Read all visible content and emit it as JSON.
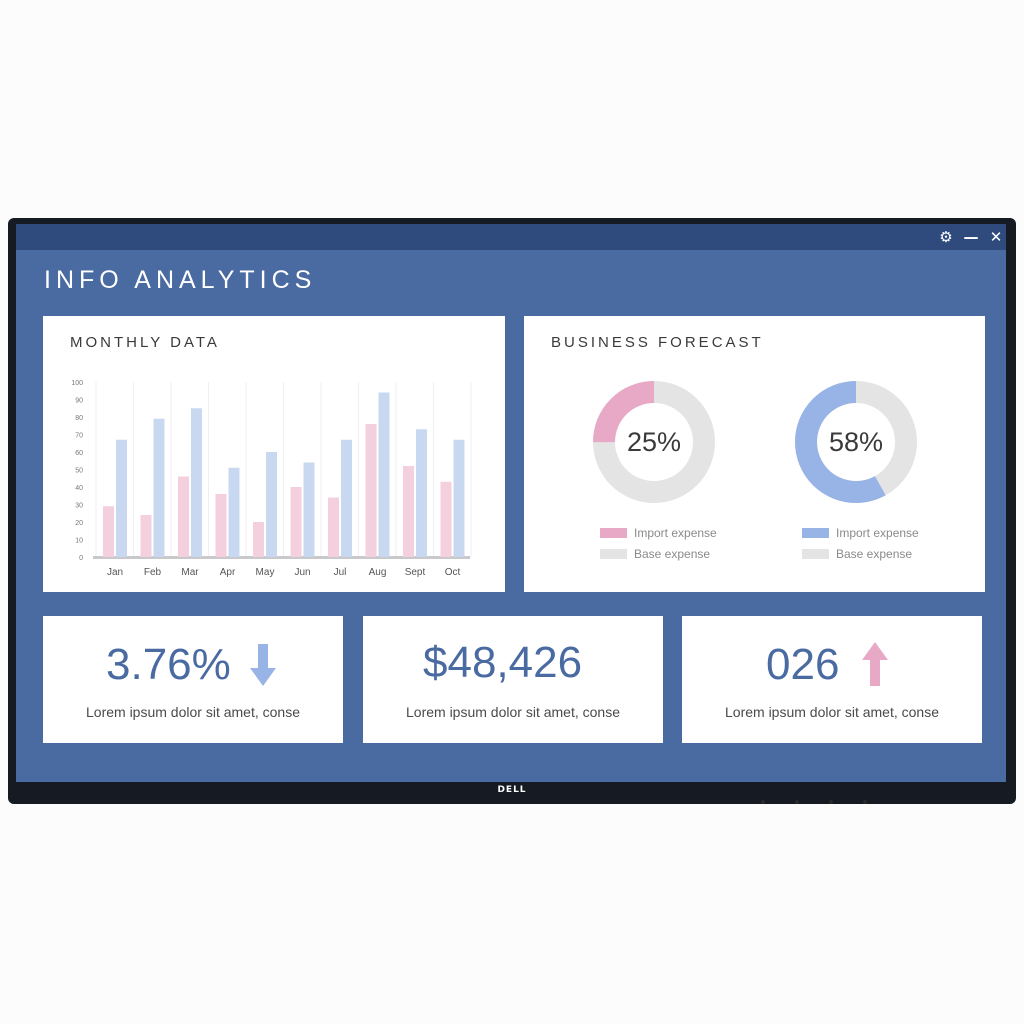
{
  "app": {
    "title": "INFO ANALYTICS",
    "window_controls": {
      "settings_icon": "gear-icon",
      "minimize_icon": "minimize-icon",
      "close_icon": "close-icon"
    },
    "logo_text": "DELL"
  },
  "colors": {
    "screen_bg": "#4a6aa2",
    "titlebar_bg": "#2f4b7d",
    "pink": "#f4cfdd",
    "light_blue": "#c8d8f0",
    "pink_accent": "#e7a9c6",
    "blue_accent": "#98b4e6",
    "base_gray": "#e4e4e4",
    "value_text": "#4a6aa2"
  },
  "monthly": {
    "title": "MONTHLY DATA",
    "chart_data": {
      "type": "bar",
      "categories": [
        "Jan",
        "Feb",
        "Mar",
        "Apr",
        "May",
        "Jun",
        "Jul",
        "Aug",
        "Sept",
        "Oct"
      ],
      "series": [
        {
          "values": [
            29,
            24,
            46,
            36,
            20,
            40,
            34,
            76,
            52,
            43
          ],
          "color": "#f4cfdd"
        },
        {
          "values": [
            67,
            79,
            85,
            51,
            60,
            54,
            67,
            94,
            73,
            67
          ],
          "color": "#c8d8f0"
        }
      ],
      "yticks": [
        "0",
        "10",
        "20",
        "30",
        "40",
        "50",
        "60",
        "70",
        "80",
        "90",
        "100"
      ],
      "ylim": [
        0,
        100
      ],
      "grid": "vertical"
    }
  },
  "forecast": {
    "title": "BUSINESS FORECAST",
    "donuts": [
      {
        "percent_label": "25%",
        "chart_data": {
          "type": "pie",
          "labels": [
            "Import expense",
            "Base expense"
          ],
          "values": [
            25,
            75
          ],
          "colors": [
            "#e7a9c6",
            "#e4e4e4"
          ]
        },
        "legend": [
          "Import expense",
          "Base expense"
        ]
      },
      {
        "percent_label": "58%",
        "chart_data": {
          "type": "pie",
          "labels": [
            "Import expense",
            "Base expense"
          ],
          "values": [
            58,
            42
          ],
          "colors": [
            "#98b4e6",
            "#e4e4e4"
          ]
        },
        "legend": [
          "Import expense",
          "Base expense"
        ]
      }
    ]
  },
  "stats": [
    {
      "value": "3.76%",
      "arrow": "down-arrow-icon",
      "arrow_color": "#98b4e6",
      "desc": "Lorem ipsum dolor sit amet, conse"
    },
    {
      "value": "$48,426",
      "desc": "Lorem ipsum dolor sit amet, conse"
    },
    {
      "value": "026",
      "arrow": "up-arrow-icon",
      "arrow_color": "#e7a9c6",
      "desc": "Lorem ipsum dolor sit amet, conse"
    }
  ]
}
